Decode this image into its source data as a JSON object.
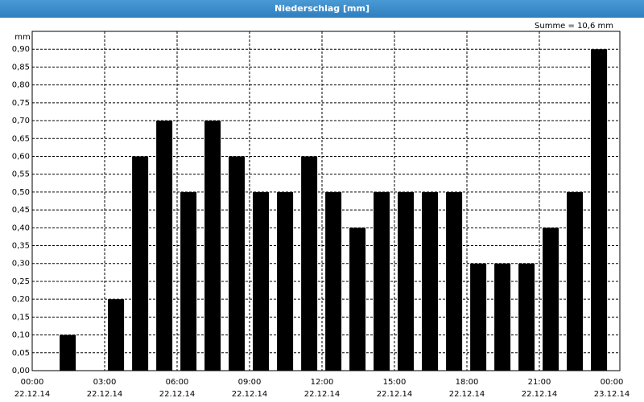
{
  "chart_data": {
    "type": "bar",
    "title": "Niederschlag [mm]",
    "y_label": "mm",
    "annotation": "Summe = 10,6 mm",
    "x": [
      0,
      1,
      2,
      3,
      4,
      5,
      6,
      7,
      8,
      9,
      10,
      11,
      12,
      13,
      14,
      15,
      16,
      17,
      18,
      19,
      20,
      21,
      22,
      23
    ],
    "values": [
      0,
      0.1,
      0,
      0.2,
      0.6,
      0.7,
      0.5,
      0.7,
      0.6,
      0.5,
      0.5,
      0.6,
      0.5,
      0.4,
      0.5,
      0.5,
      0.5,
      0.5,
      0.3,
      0.3,
      0.3,
      0.4,
      0.5,
      0.9
    ],
    "color": "#000000",
    "xlim": [
      0,
      24
    ],
    "xticks": [
      {
        "value": 0,
        "label": "00:00"
      },
      {
        "value": 3,
        "label": "03:00"
      },
      {
        "value": 6,
        "label": "06:00"
      },
      {
        "value": 9,
        "label": "09:00"
      },
      {
        "value": 12,
        "label": "12:00"
      },
      {
        "value": 15,
        "label": "15:00"
      },
      {
        "value": 18,
        "label": "18:00"
      },
      {
        "value": 21,
        "label": "21:00"
      },
      {
        "value": 24,
        "label": "00:00"
      }
    ],
    "xtick_dates": [
      "22.12.14",
      "22.12.14",
      "22.12.14",
      "22.12.14",
      "22.12.14",
      "22.12.14",
      "22.12.14",
      "22.12.14",
      "23.12.14"
    ],
    "ylim": [
      0,
      0.95
    ],
    "yticks": [
      {
        "value": 0,
        "label": "0,00"
      },
      {
        "value": 0.05,
        "label": "0,05"
      },
      {
        "value": 0.1,
        "label": "0,10"
      },
      {
        "value": 0.15,
        "label": "0,15"
      },
      {
        "value": 0.2,
        "label": "0,20"
      },
      {
        "value": 0.25,
        "label": "0,25"
      },
      {
        "value": 0.3,
        "label": "0,30"
      },
      {
        "value": 0.35,
        "label": "0,35"
      },
      {
        "value": 0.4,
        "label": "0,40"
      },
      {
        "value": 0.45,
        "label": "0,45"
      },
      {
        "value": 0.5,
        "label": "0,50"
      },
      {
        "value": 0.55,
        "label": "0,55"
      },
      {
        "value": 0.6,
        "label": "0,60"
      },
      {
        "value": 0.65,
        "label": "0,65"
      },
      {
        "value": 0.7,
        "label": "0,70"
      },
      {
        "value": 0.75,
        "label": "0,75"
      },
      {
        "value": 0.8,
        "label": "0,80"
      },
      {
        "value": 0.85,
        "label": "0,85"
      },
      {
        "value": 0.9,
        "label": "0,90"
      }
    ],
    "grid": true
  }
}
